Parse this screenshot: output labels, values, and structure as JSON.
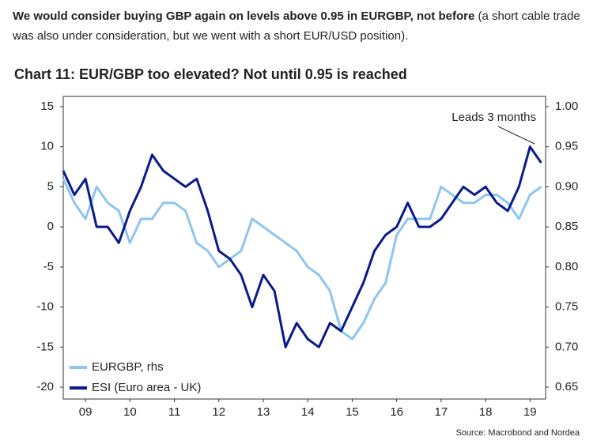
{
  "header": {
    "bold": "We would consider buying GBP again on levels above 0.95 in EURGBP, not before",
    "text": "(a short cable trade was also under consideration, but we went with a short EUR/USD position)."
  },
  "source": "Source: Macrobond and Nordea",
  "chart_data": {
    "type": "line",
    "title": "Chart 11: EUR/GBP too elevated? Not until 0.95 is reached",
    "annotation": "Leads 3 months",
    "legend": "lower left",
    "x": [
      9.0,
      9.25,
      9.5,
      9.75,
      10.0,
      10.25,
      10.5,
      10.75,
      11.0,
      11.25,
      11.5,
      11.75,
      12.0,
      12.25,
      12.5,
      12.75,
      13.0,
      13.25,
      13.5,
      13.75,
      14.0,
      14.25,
      14.5,
      14.75,
      15.0,
      15.25,
      15.5,
      15.75,
      16.0,
      16.25,
      16.5,
      16.75,
      17.0,
      17.25,
      17.5,
      17.75,
      18.0,
      18.25,
      18.5,
      18.75,
      19.0,
      19.25,
      19.5,
      19.75
    ],
    "xlim": [
      9,
      19.85
    ],
    "xticks": [
      {
        "value": 9.5,
        "label": "09"
      },
      {
        "value": 10.5,
        "label": "10"
      },
      {
        "value": 11.5,
        "label": "11"
      },
      {
        "value": 12.5,
        "label": "12"
      },
      {
        "value": 13.5,
        "label": "13"
      },
      {
        "value": 14.5,
        "label": "14"
      },
      {
        "value": 15.5,
        "label": "15"
      },
      {
        "value": 16.5,
        "label": "16"
      },
      {
        "value": 17.5,
        "label": "17"
      },
      {
        "value": 18.5,
        "label": "18"
      },
      {
        "value": 19.5,
        "label": "19"
      }
    ],
    "ylim": [
      -20,
      15
    ],
    "yticks": [
      15,
      10,
      5,
      0,
      -5,
      -10,
      -15,
      -20
    ],
    "y2lim": [
      0.65,
      1
    ],
    "y2ticks": [
      {
        "value": 1,
        "label": "1.00"
      },
      0.95,
      {
        "value": 0.9,
        "label": "0.90"
      },
      0.85,
      {
        "value": 0.8,
        "label": "0.80"
      },
      0.75,
      {
        "value": 0.7,
        "label": "0.70"
      },
      0.65
    ],
    "series": [
      {
        "name": "EURGBP, rhs",
        "color": "#8ec5f0",
        "axis": "y2",
        "values": [
          0.91,
          0.88,
          0.86,
          0.9,
          0.88,
          0.87,
          0.83,
          0.86,
          0.86,
          0.88,
          0.88,
          0.87,
          0.83,
          0.82,
          0.8,
          0.81,
          0.82,
          0.86,
          0.85,
          0.84,
          0.83,
          0.82,
          0.8,
          0.79,
          0.77,
          0.72,
          0.71,
          0.73,
          0.76,
          0.78,
          0.84,
          0.86,
          0.86,
          0.86,
          0.9,
          0.89,
          0.88,
          0.88,
          0.89,
          0.89,
          0.88,
          0.86,
          0.89,
          0.9
        ]
      },
      {
        "name": "ESI (Euro area - UK)",
        "color": "#0a1a8c",
        "values": [
          7,
          4,
          6,
          0,
          0,
          -2,
          2,
          5,
          9,
          7,
          6,
          5,
          6,
          2,
          -3,
          -4,
          -6,
          -10,
          -6,
          -8,
          -15,
          -12,
          -14,
          -15,
          -12,
          -13,
          -10,
          -7,
          -3,
          -1,
          0,
          3,
          0,
          0,
          1,
          3,
          5,
          4,
          5,
          3,
          2,
          5,
          10,
          8
        ]
      }
    ]
  }
}
